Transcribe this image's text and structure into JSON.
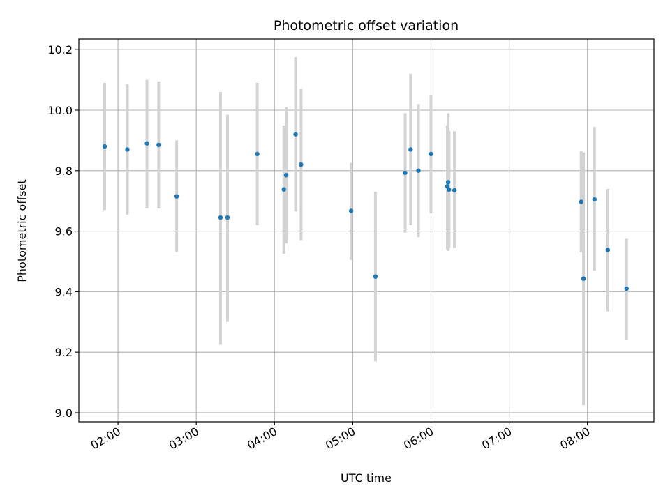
{
  "chart_data": {
    "type": "scatter",
    "title": "Photometric offset variation",
    "xlabel": "UTC time",
    "ylabel": "Photometric offset",
    "x_unit": "hours UTC",
    "xlim": [
      1.5,
      8.85
    ],
    "ylim": [
      8.97,
      10.235
    ],
    "x_ticks": [
      {
        "value": 2,
        "label": "02:00"
      },
      {
        "value": 3,
        "label": "03:00"
      },
      {
        "value": 4,
        "label": "04:00"
      },
      {
        "value": 5,
        "label": "05:00"
      },
      {
        "value": 6,
        "label": "06:00"
      },
      {
        "value": 7,
        "label": "07:00"
      },
      {
        "value": 8,
        "label": "08:00"
      }
    ],
    "y_ticks": [
      {
        "value": 9.0,
        "label": "9.0"
      },
      {
        "value": 9.2,
        "label": "9.2"
      },
      {
        "value": 9.4,
        "label": "9.4"
      },
      {
        "value": 9.6,
        "label": "9.6"
      },
      {
        "value": 9.8,
        "label": "9.8"
      },
      {
        "value": 10.0,
        "label": "10.0"
      },
      {
        "value": 10.2,
        "label": "10.2"
      }
    ],
    "grid": true,
    "marker_color": "#1f77b4",
    "errorbar_color": "#d3d3d3",
    "points": [
      {
        "x": 1.83,
        "y": 9.88,
        "yerr_low": 9.67,
        "yerr_high": 10.09
      },
      {
        "x": 2.12,
        "y": 9.87,
        "yerr_low": 9.655,
        "yerr_high": 10.085
      },
      {
        "x": 2.37,
        "y": 9.89,
        "yerr_low": 9.675,
        "yerr_high": 10.1
      },
      {
        "x": 2.52,
        "y": 9.885,
        "yerr_low": 9.675,
        "yerr_high": 10.095
      },
      {
        "x": 2.75,
        "y": 9.715,
        "yerr_low": 9.53,
        "yerr_high": 9.9
      },
      {
        "x": 3.31,
        "y": 9.645,
        "yerr_low": 9.225,
        "yerr_high": 10.06
      },
      {
        "x": 3.4,
        "y": 9.645,
        "yerr_low": 9.3,
        "yerr_high": 9.985
      },
      {
        "x": 3.78,
        "y": 9.855,
        "yerr_low": 9.62,
        "yerr_high": 10.09
      },
      {
        "x": 4.12,
        "y": 9.738,
        "yerr_low": 9.525,
        "yerr_high": 9.95
      },
      {
        "x": 4.15,
        "y": 9.785,
        "yerr_low": 9.56,
        "yerr_high": 10.01
      },
      {
        "x": 4.27,
        "y": 9.92,
        "yerr_low": 9.665,
        "yerr_high": 10.175
      },
      {
        "x": 4.34,
        "y": 9.82,
        "yerr_low": 9.57,
        "yerr_high": 10.07
      },
      {
        "x": 4.98,
        "y": 9.667,
        "yerr_low": 9.505,
        "yerr_high": 9.825
      },
      {
        "x": 5.29,
        "y": 9.45,
        "yerr_low": 9.17,
        "yerr_high": 9.73
      },
      {
        "x": 5.67,
        "y": 9.793,
        "yerr_low": 9.595,
        "yerr_high": 9.99
      },
      {
        "x": 5.74,
        "y": 9.87,
        "yerr_low": 9.62,
        "yerr_high": 10.12
      },
      {
        "x": 5.84,
        "y": 9.8,
        "yerr_low": 9.58,
        "yerr_high": 10.02
      },
      {
        "x": 6.0,
        "y": 9.855,
        "yerr_low": 9.66,
        "yerr_high": 10.05
      },
      {
        "x": 6.21,
        "y": 9.748,
        "yerr_low": 9.54,
        "yerr_high": 9.95
      },
      {
        "x": 6.22,
        "y": 9.762,
        "yerr_low": 9.535,
        "yerr_high": 9.99
      },
      {
        "x": 6.23,
        "y": 9.737,
        "yerr_low": 9.545,
        "yerr_high": 9.93
      },
      {
        "x": 6.3,
        "y": 9.735,
        "yerr_low": 9.545,
        "yerr_high": 9.93
      },
      {
        "x": 7.92,
        "y": 9.697,
        "yerr_low": 9.53,
        "yerr_high": 9.865
      },
      {
        "x": 7.95,
        "y": 9.443,
        "yerr_low": 9.025,
        "yerr_high": 9.86
      },
      {
        "x": 8.09,
        "y": 9.705,
        "yerr_low": 9.47,
        "yerr_high": 9.945
      },
      {
        "x": 8.26,
        "y": 9.538,
        "yerr_low": 9.335,
        "yerr_high": 9.74
      },
      {
        "x": 8.5,
        "y": 9.41,
        "yerr_low": 9.24,
        "yerr_high": 9.575
      }
    ]
  }
}
